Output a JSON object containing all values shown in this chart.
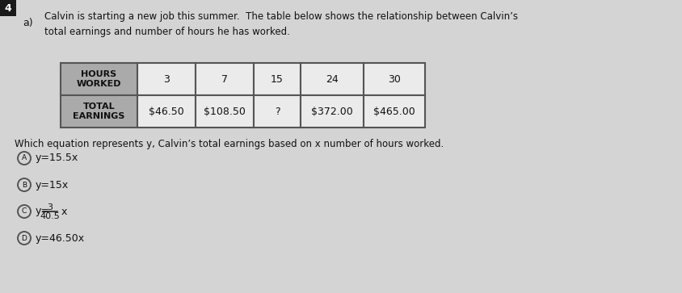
{
  "title_number": "4",
  "problem_letter": "a)",
  "intro_text": "Calvin is starting a new job this summer.  The table below shows the relationship between Calvin’s\ntotal earnings and number of hours he has worked.",
  "question_text": "Which equation represents y, Calvin’s total earnings based on x number of hours worked.",
  "table_row1_header": "HOURS\nWORKED",
  "table_row1_data": [
    "3",
    "7",
    "15",
    "24",
    "30"
  ],
  "table_row2_header": "TOTAL\nEARNINGS",
  "table_row2_data": [
    "$46.50",
    "$108.50",
    "?",
    "$372.00",
    "$465.00"
  ],
  "options": [
    {
      "label": "A",
      "text": "y=15.5x"
    },
    {
      "label": "B",
      "text": "y=15x"
    },
    {
      "label": "C",
      "is_fraction": true
    },
    {
      "label": "D",
      "text": "y=46.50x"
    }
  ],
  "background_color": "#d4d4d4",
  "table_header_bg": "#aaaaaa",
  "table_cell_bg": "#ebebeb",
  "text_color": "#111111",
  "border_color": "#555555",
  "title_bg": "#1a1a1a",
  "title_text_color": "#ffffff"
}
